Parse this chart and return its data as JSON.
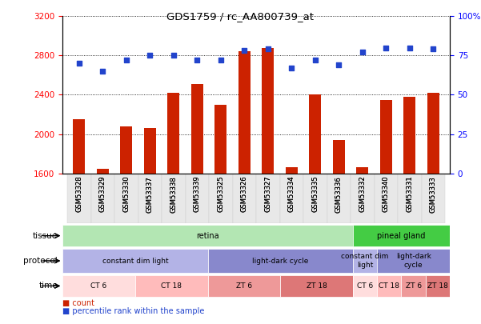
{
  "title": "GDS1759 / rc_AA800739_at",
  "samples": [
    "GSM53328",
    "GSM53329",
    "GSM53330",
    "GSM53337",
    "GSM53338",
    "GSM53339",
    "GSM53325",
    "GSM53326",
    "GSM53327",
    "GSM53334",
    "GSM53335",
    "GSM53336",
    "GSM53332",
    "GSM53340",
    "GSM53331",
    "GSM53333"
  ],
  "counts": [
    2150,
    1650,
    2080,
    2060,
    2420,
    2510,
    2300,
    2840,
    2880,
    1660,
    2400,
    1940,
    1660,
    2350,
    2380,
    2420
  ],
  "percentiles": [
    70,
    65,
    72,
    75,
    75,
    72,
    72,
    78,
    79,
    67,
    72,
    69,
    77,
    80,
    80,
    79
  ],
  "ylim_left": [
    1600,
    3200
  ],
  "ylim_right": [
    0,
    100
  ],
  "left_ticks": [
    1600,
    2000,
    2400,
    2800,
    3200
  ],
  "right_ticks": [
    0,
    25,
    50,
    75,
    100
  ],
  "right_tick_labels": [
    "0",
    "25",
    "50",
    "75",
    "100%"
  ],
  "bar_color": "#cc2200",
  "dot_color": "#2244cc",
  "bar_width": 0.5,
  "tissue_retina_color": "#b3e6b3",
  "tissue_pineal_color": "#44cc44",
  "protocol_cdl_color": "#b3b3e6",
  "protocol_ldc_color": "#8888cc",
  "time_ct6_color": "#ffdddd",
  "time_ct18_color": "#ffbbbb",
  "time_zt6_color": "#ee9999",
  "time_zt18_color": "#dd7777",
  "tissue_labels": [
    {
      "label": "retina",
      "start": 0,
      "end": 11
    },
    {
      "label": "pineal gland",
      "start": 12,
      "end": 15
    }
  ],
  "protocol_labels": [
    {
      "label": "constant dim light",
      "start": 0,
      "end": 5
    },
    {
      "label": "light-dark cycle",
      "start": 6,
      "end": 11
    },
    {
      "label": "constant dim\nlight",
      "start": 12,
      "end": 12
    },
    {
      "label": "light-dark\ncycle",
      "start": 13,
      "end": 15
    }
  ],
  "protocol_colors": [
    "#b3b3e6",
    "#8888cc",
    "#b3b3e6",
    "#8888cc"
  ],
  "time_labels": [
    {
      "label": "CT 6",
      "start": 0,
      "end": 2
    },
    {
      "label": "CT 18",
      "start": 3,
      "end": 5
    },
    {
      "label": "ZT 6",
      "start": 6,
      "end": 8
    },
    {
      "label": "ZT 18",
      "start": 9,
      "end": 11
    },
    {
      "label": "CT 6",
      "start": 12,
      "end": 12
    },
    {
      "label": "CT 18",
      "start": 13,
      "end": 13
    },
    {
      "label": "ZT 6",
      "start": 14,
      "end": 14
    },
    {
      "label": "ZT 18",
      "start": 15,
      "end": 15
    }
  ],
  "time_colors": [
    "#ffdddd",
    "#ffbbbb",
    "#ee9999",
    "#dd7777",
    "#ffdddd",
    "#ffbbbb",
    "#ee9999",
    "#dd7777"
  ]
}
